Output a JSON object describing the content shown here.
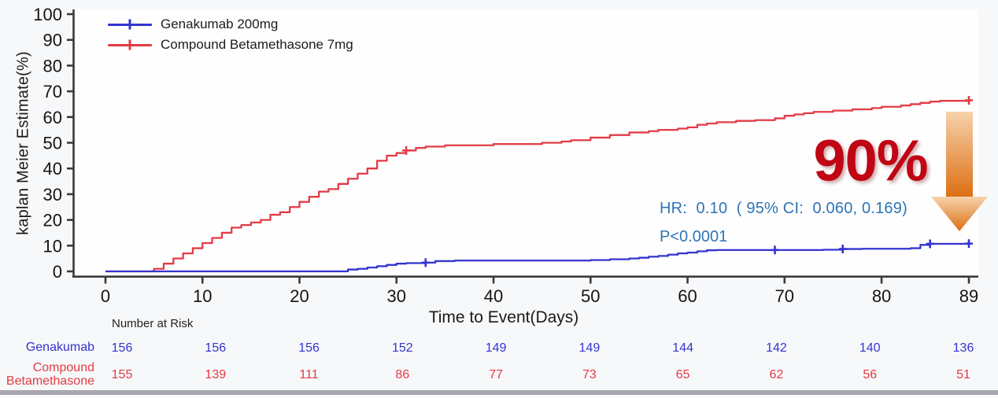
{
  "page": {
    "background": "#f7f8fa",
    "bottom_bar_color": "#a6a8ae"
  },
  "chart_data": {
    "type": "line",
    "subtype": "kaplan-meier-step",
    "title": "",
    "xlabel": "Time to Event(Days)",
    "ylabel": "kaplan Meier Estimate(%)",
    "xlim": [
      0,
      89
    ],
    "ylim": [
      0,
      100
    ],
    "xticks": [
      0,
      10,
      20,
      30,
      40,
      50,
      60,
      70,
      80,
      89
    ],
    "yticks": [
      0,
      10,
      20,
      30,
      40,
      50,
      60,
      70,
      80,
      90,
      100
    ],
    "grid": false,
    "legend_position": "top-left",
    "axis_color": "#3a3a3a",
    "tick_label_color": "#141414",
    "series": [
      {
        "name": "Genakumab 200mg",
        "color": "#3434cf",
        "points": [
          [
            0,
            0
          ],
          [
            24,
            0
          ],
          [
            25,
            0.7
          ],
          [
            26,
            1
          ],
          [
            27,
            1.5
          ],
          [
            28,
            2
          ],
          [
            29,
            2.5
          ],
          [
            30,
            3
          ],
          [
            31,
            3.2
          ],
          [
            33,
            3.4
          ],
          [
            34,
            4
          ],
          [
            36,
            4.2
          ],
          [
            50,
            4.4
          ],
          [
            52,
            4.7
          ],
          [
            54,
            5
          ],
          [
            55,
            5.3
          ],
          [
            56,
            5.7
          ],
          [
            57,
            6
          ],
          [
            58,
            6.5
          ],
          [
            59,
            7
          ],
          [
            60,
            7.3
          ],
          [
            61,
            7.8
          ],
          [
            62,
            8.2
          ],
          [
            63,
            8.3
          ],
          [
            74,
            8.4
          ],
          [
            76,
            8.7
          ],
          [
            78,
            8.8
          ],
          [
            83,
            9
          ],
          [
            84,
            10.3
          ],
          [
            85,
            10.7
          ],
          [
            89,
            10.8
          ]
        ],
        "censor_marks": [
          [
            33,
            3.4
          ],
          [
            69,
            8.3
          ],
          [
            76,
            8.7
          ],
          [
            85,
            10.7
          ],
          [
            89,
            10.8
          ]
        ]
      },
      {
        "name": "Compound Betamethasone 7mg",
        "color": "#e33b44",
        "points": [
          [
            0,
            0
          ],
          [
            4,
            0
          ],
          [
            5,
            1
          ],
          [
            6,
            3
          ],
          [
            7,
            5
          ],
          [
            8,
            7
          ],
          [
            9,
            9
          ],
          [
            10,
            11
          ],
          [
            11,
            13
          ],
          [
            12,
            15
          ],
          [
            13,
            17
          ],
          [
            14,
            18
          ],
          [
            15,
            19
          ],
          [
            16,
            20
          ],
          [
            17,
            22
          ],
          [
            18,
            23
          ],
          [
            19,
            25
          ],
          [
            20,
            27
          ],
          [
            21,
            29
          ],
          [
            22,
            31
          ],
          [
            23,
            32
          ],
          [
            24,
            34
          ],
          [
            25,
            36
          ],
          [
            26,
            38
          ],
          [
            27,
            40
          ],
          [
            28,
            43
          ],
          [
            29,
            45
          ],
          [
            30,
            46
          ],
          [
            31,
            47
          ],
          [
            32,
            48
          ],
          [
            33,
            48.5
          ],
          [
            35,
            49
          ],
          [
            40,
            49.5
          ],
          [
            45,
            50
          ],
          [
            47,
            50.5
          ],
          [
            48,
            51
          ],
          [
            50,
            52
          ],
          [
            52,
            53
          ],
          [
            54,
            54
          ],
          [
            56,
            54.5
          ],
          [
            57,
            55
          ],
          [
            59,
            55.5
          ],
          [
            60,
            56
          ],
          [
            61,
            57
          ],
          [
            62,
            57.5
          ],
          [
            63,
            58
          ],
          [
            65,
            58.5
          ],
          [
            67,
            58.8
          ],
          [
            69,
            59.5
          ],
          [
            70,
            60.5
          ],
          [
            71,
            61
          ],
          [
            72,
            61.5
          ],
          [
            73,
            62
          ],
          [
            75,
            62.5
          ],
          [
            77,
            63
          ],
          [
            79,
            63.5
          ],
          [
            80,
            64
          ],
          [
            82,
            64.5
          ],
          [
            83,
            65
          ],
          [
            84,
            65.5
          ],
          [
            85,
            66
          ],
          [
            86,
            66.3
          ],
          [
            89,
            66.5
          ]
        ],
        "censor_marks": [
          [
            31,
            47
          ],
          [
            89,
            66.5
          ]
        ]
      }
    ]
  },
  "legend": {
    "items": [
      {
        "label": "Genakumab 200mg"
      },
      {
        "label": "Compound Betamethasone 7mg"
      }
    ]
  },
  "annotations": {
    "hr_text": "HR:  0.10  ( 95% CI:  0.060, 0.169)",
    "p_text": "P<0.0001",
    "stats_color": "#2e74b5",
    "effect_text": "90%",
    "effect_color": "#c00514",
    "arrow": {
      "direction": "down",
      "color_top": "#f6d2ab",
      "color_bottom": "#dd6f14"
    }
  },
  "risk_table": {
    "header": "Number at Risk",
    "columns_at_days": [
      0,
      10,
      20,
      30,
      40,
      50,
      60,
      70,
      80,
      89
    ],
    "rows": [
      {
        "label": "Genakumab",
        "color": "#3434cf",
        "values": [
          156,
          156,
          156,
          152,
          149,
          149,
          144,
          142,
          140,
          136
        ]
      },
      {
        "label": "Compound Betamethasone",
        "color": "#e33b44",
        "values": [
          155,
          139,
          111,
          86,
          77,
          73,
          65,
          62,
          56,
          51
        ]
      }
    ]
  }
}
